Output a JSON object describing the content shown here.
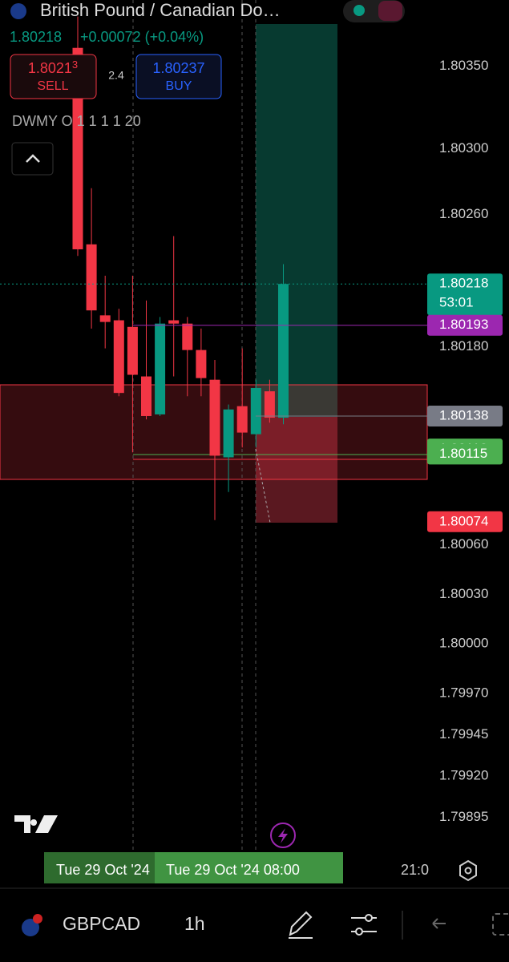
{
  "header": {
    "title": "British Pound / Canadian Do…",
    "last_price": "1.80218",
    "change": "+0.00072 (+0.04%)"
  },
  "trade": {
    "sell_price": "1.8021",
    "sell_price_small": "3",
    "sell_label": "SELL",
    "spread": "2.4",
    "buy_price": "1.80237",
    "buy_label": "BUY"
  },
  "indicator_label": "DWMY O 1 1 1 1 20",
  "chart": {
    "type": "candlestick",
    "up_color": "#089981",
    "down_color": "#f23645",
    "candles": {
      "open": [
        1.80361,
        1.80242,
        1.80199,
        1.80196,
        1.80192,
        1.80162,
        1.80139,
        1.80196,
        1.80194,
        1.80178,
        1.8016,
        1.80113,
        1.80144,
        1.80127,
        1.80153,
        1.80137
      ],
      "high": [
        1.8038,
        1.80276,
        1.80223,
        1.80203,
        1.80223,
        1.80208,
        1.80198,
        1.80247,
        1.80198,
        1.80191,
        1.80172,
        1.80145,
        1.80179,
        1.8016,
        1.8016,
        1.8023
      ],
      "low": [
        1.80235,
        1.80191,
        1.80179,
        1.8015,
        1.80116,
        1.80136,
        1.80138,
        1.80162,
        1.8015,
        1.8015,
        1.80075,
        1.80092,
        1.80119,
        1.80119,
        1.80134,
        1.80133
      ],
      "close": [
        1.80239,
        1.80202,
        1.80195,
        1.80152,
        1.80163,
        1.80138,
        1.80194,
        1.80194,
        1.80178,
        1.80161,
        1.80114,
        1.80142,
        1.80128,
        1.80155,
        1.80137,
        1.80218
      ]
    },
    "ylim": [
      1.79852,
      1.8039
    ],
    "yticks": [
      {
        "value": 1.8035,
        "label": "1.80350"
      },
      {
        "value": 1.803,
        "label": "1.80300"
      },
      {
        "value": 1.8026,
        "label": "1.80260"
      },
      {
        "value": 1.8018,
        "label": "1.80180"
      },
      {
        "value": 1.8006,
        "label": "1.80060"
      },
      {
        "value": 1.8003,
        "label": "1.80030"
      },
      {
        "value": 1.8,
        "label": "1.80000"
      },
      {
        "value": 1.7997,
        "label": "1.79970"
      },
      {
        "value": 1.79945,
        "label": "1.79945"
      },
      {
        "value": 1.7992,
        "label": "1.79920"
      },
      {
        "value": 1.79895,
        "label": "1.79895"
      }
    ],
    "price_tags": [
      {
        "value": 1.80218,
        "countdown": "53:01",
        "color": "#089981"
      },
      {
        "value": 1.80193,
        "color": "#9c27b0"
      },
      {
        "value": 1.80138,
        "color": "#787b86"
      },
      {
        "value": 1.80118,
        "color": "#4caf50"
      },
      {
        "value": 1.80115,
        "color": "#4caf50"
      },
      {
        "value": 1.80074,
        "color": "#f23645"
      }
    ],
    "x_labels": [
      "Tue 29 Oct '24",
      "Tue 29 Oct '24  08:00",
      "21:0"
    ]
  },
  "bottom": {
    "symbol": "GBPCAD",
    "interval": "1h"
  }
}
